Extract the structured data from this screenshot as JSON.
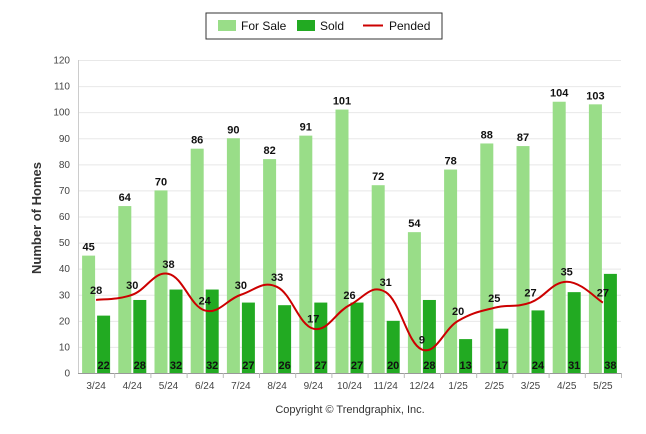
{
  "chart_data": {
    "type": "bar",
    "categories": [
      "3/24",
      "4/24",
      "5/24",
      "6/24",
      "7/24",
      "8/24",
      "9/24",
      "10/24",
      "11/24",
      "12/24",
      "1/25",
      "2/25",
      "3/25",
      "4/25",
      "5/25"
    ],
    "series": [
      {
        "name": "For Sale",
        "type": "bar",
        "color": "#99dd88",
        "values": [
          45,
          64,
          70,
          86,
          90,
          82,
          91,
          101,
          72,
          54,
          78,
          88,
          87,
          104,
          103
        ]
      },
      {
        "name": "Sold",
        "type": "bar",
        "color": "#22aa22",
        "values": [
          22,
          28,
          32,
          32,
          27,
          26,
          27,
          27,
          20,
          28,
          13,
          17,
          24,
          31,
          38
        ]
      },
      {
        "name": "Pended",
        "type": "line",
        "color": "#cc0000",
        "values": [
          28,
          30,
          38,
          24,
          30,
          33,
          17,
          26,
          31,
          9,
          20,
          25,
          27,
          35,
          27
        ]
      }
    ],
    "ylabel": "Number of Homes",
    "xlabel": "",
    "ylim": [
      0,
      120
    ],
    "yticks": [
      0,
      10,
      20,
      30,
      40,
      50,
      60,
      70,
      80,
      90,
      100,
      110,
      120
    ],
    "grid": true,
    "legend": "top-center",
    "footer": "Copyright © Trendgraphix, Inc."
  }
}
